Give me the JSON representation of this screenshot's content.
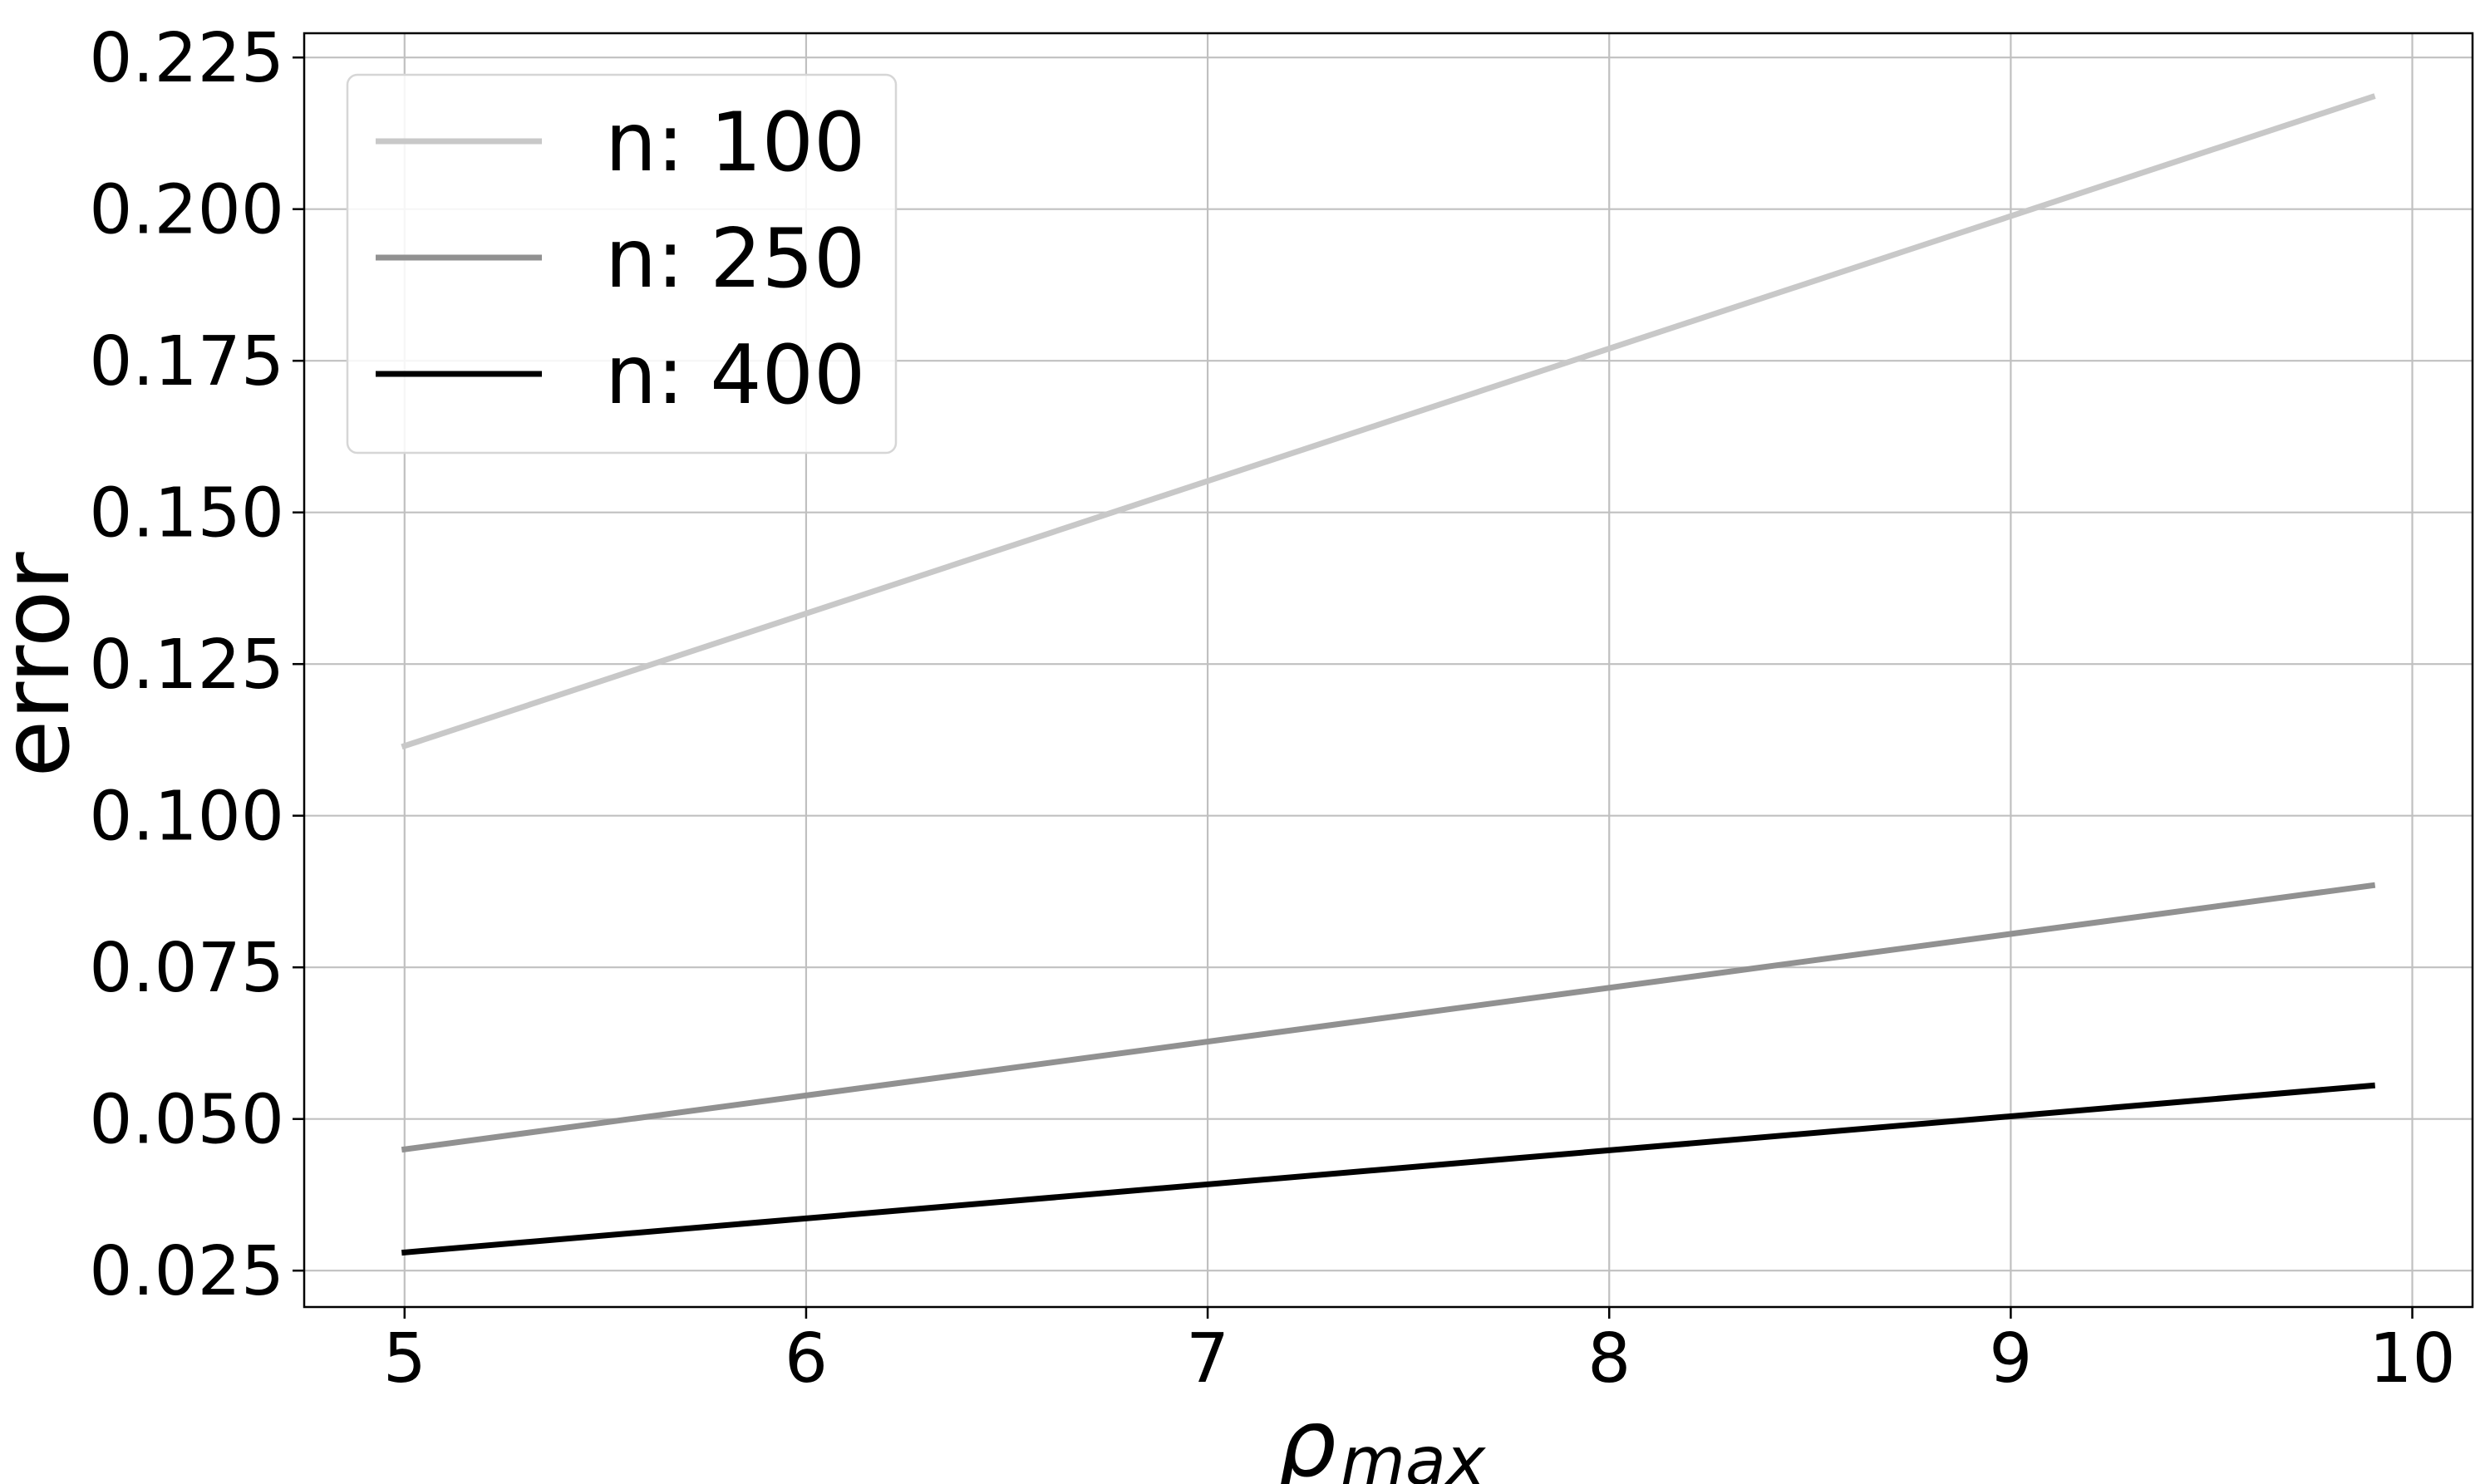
{
  "chart_data": {
    "type": "line",
    "title": "",
    "xlabel_main": "ρ",
    "xlabel_sub": "max",
    "ylabel": "error",
    "xlim": [
      4.75,
      10.15
    ],
    "ylim": [
      0.019,
      0.229
    ],
    "x_ticks": [
      5,
      6,
      7,
      8,
      9,
      10
    ],
    "x_tick_labels": [
      "5",
      "6",
      "7",
      "8",
      "9",
      "10"
    ],
    "y_ticks": [
      0.025,
      0.05,
      0.075,
      0.1,
      0.125,
      0.15,
      0.175,
      0.2,
      0.225
    ],
    "y_tick_labels": [
      "0.025",
      "0.050",
      "0.075",
      "0.100",
      "0.125",
      "0.150",
      "0.175",
      "0.200",
      "0.225"
    ],
    "grid": true,
    "legend_position": "top-left",
    "x": [
      5.0,
      9.9
    ],
    "series": [
      {
        "name": "n: 100",
        "color": "#c8c8c8",
        "values": [
          0.1115,
          0.2185
        ]
      },
      {
        "name": "n: 250",
        "color": "#919191",
        "values": [
          0.045,
          0.0885
        ]
      },
      {
        "name": "n: 400",
        "color": "#000000",
        "values": [
          0.028,
          0.0555
        ]
      }
    ]
  }
}
